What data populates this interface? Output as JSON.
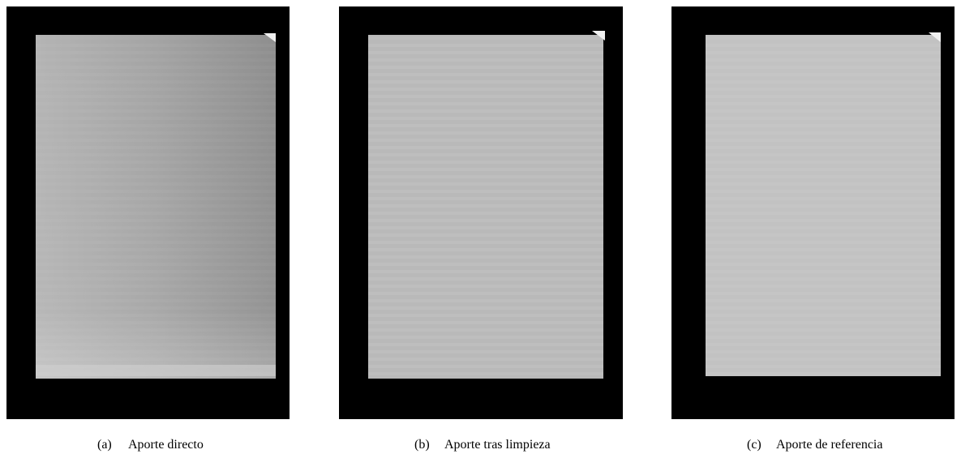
{
  "figure": {
    "panels": [
      {
        "label": "(a)",
        "caption": "Aporte directo"
      },
      {
        "label": "(b)",
        "caption": "Aporte tras limpieza"
      },
      {
        "label": "(c)",
        "caption": "Aporte de referencia"
      }
    ]
  }
}
